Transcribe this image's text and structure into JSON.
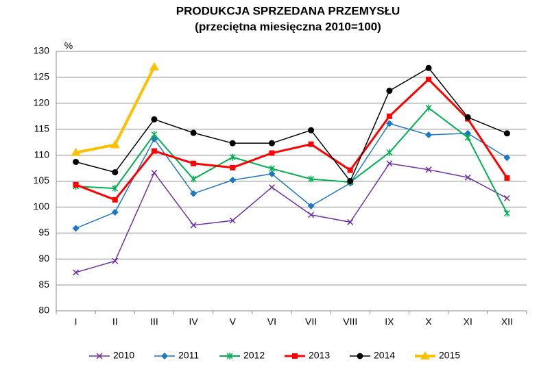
{
  "chart_data": {
    "type": "line",
    "title": "PRODUKCJA  SPRZEDANA  PRZEMYSŁU",
    "subtitle": "(przeciętna miesięczna 2010=100)",
    "y_label": "%",
    "categories": [
      "I",
      "II",
      "III",
      "IV",
      "V",
      "VI",
      "VII",
      "VIII",
      "IX",
      "X",
      "XI",
      "XII"
    ],
    "series": [
      {
        "name": "2010",
        "color": "#7030a0",
        "marker": "x",
        "width": 1.5,
        "values": [
          87.4,
          89.6,
          106.6,
          96.5,
          97.4,
          103.8,
          98.5,
          97.1,
          108.4,
          107.2,
          105.7,
          101.7
        ]
      },
      {
        "name": "2011",
        "color": "#1f77c4",
        "marker": "diamond",
        "width": 1.5,
        "values": [
          95.9,
          99.0,
          113.1,
          102.6,
          105.2,
          106.4,
          100.2,
          104.6,
          116.1,
          113.9,
          114.2,
          109.5
        ]
      },
      {
        "name": "2012",
        "color": "#00b050",
        "marker": "star",
        "width": 2,
        "values": [
          104.0,
          103.6,
          114.0,
          105.4,
          109.6,
          107.4,
          105.4,
          104.8,
          110.5,
          119.1,
          113.4,
          98.8
        ]
      },
      {
        "name": "2013",
        "color": "#ff0000",
        "marker": "square",
        "width": 3,
        "values": [
          104.3,
          101.4,
          110.8,
          108.4,
          107.6,
          110.4,
          112.1,
          107.1,
          117.5,
          124.6,
          117.0,
          105.6
        ]
      },
      {
        "name": "2014",
        "color": "#000000",
        "marker": "circle",
        "width": 1.5,
        "values": [
          108.7,
          106.7,
          116.9,
          114.3,
          112.3,
          112.3,
          114.8,
          105.0,
          122.4,
          126.8,
          117.3,
          114.2
        ]
      },
      {
        "name": "2015",
        "color": "#ffc000",
        "marker": "triangle",
        "width": 4,
        "values": [
          110.5,
          112.0,
          127.0,
          null,
          null,
          null,
          null,
          null,
          null,
          null,
          null,
          null
        ]
      }
    ],
    "ylim": [
      80,
      130
    ],
    "yticks": [
      80,
      85,
      90,
      95,
      100,
      105,
      110,
      115,
      120,
      125,
      130
    ],
    "grid": true,
    "legend": "bottom"
  }
}
